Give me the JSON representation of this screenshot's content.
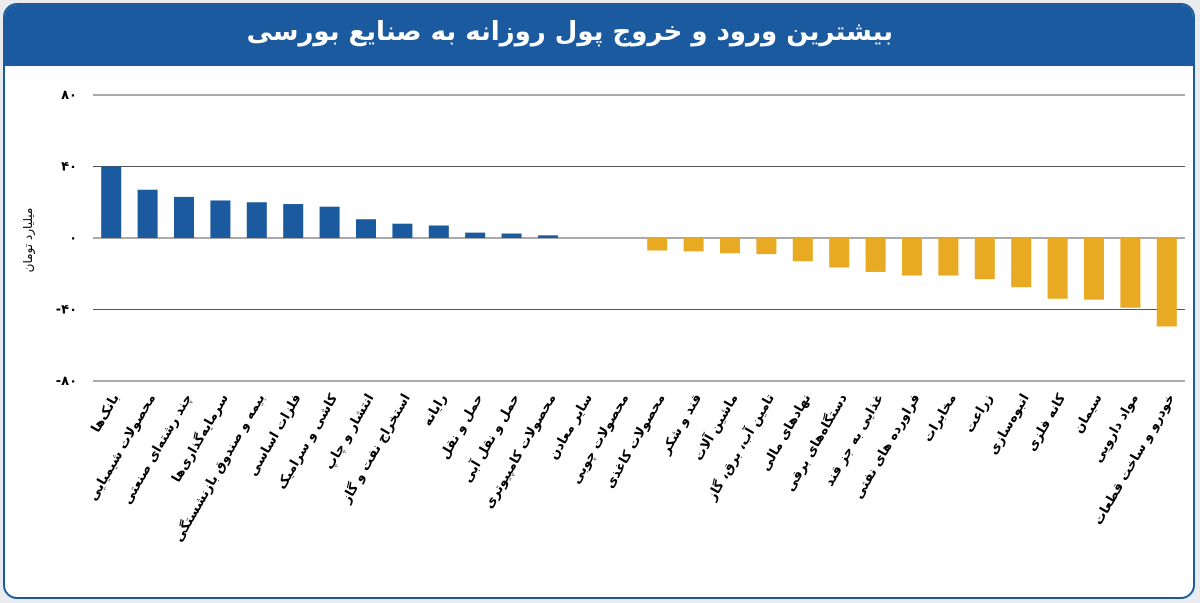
{
  "header": {
    "title": "بیشترین ورود و خروج پول روزانه به صنایع بورسی"
  },
  "colors": {
    "header_bg": "#1c5aa0",
    "positive_bar": "#1c5aa0",
    "negative_bar": "#e8a923"
  },
  "chart_data": {
    "type": "bar",
    "title": "بیشترین ورود و خروج پول روزانه به صنایع بورسی",
    "ylabel": "میلیارد تومان",
    "xlabel": "",
    "ylim": [
      -80,
      80
    ],
    "yticks": [
      80,
      40,
      0,
      -40,
      -80
    ],
    "ytick_labels": [
      "۸۰",
      "۴۰",
      "۰",
      "-۴۰",
      "-۸۰"
    ],
    "grid": "horizontal",
    "categories": [
      "بانک‌ها",
      "محصولات شیمیایی",
      "چند رشته‌ای صنعتی",
      "سرمایه‌گذاری‌ها",
      "بیمه و صندوق بازنشستگی",
      "فلزات اساسی",
      "کاشی و سرامیک",
      "انتشار و چاپ",
      "استخراج نفت و گاز",
      "رایانه",
      "حمل و نقل",
      "حمل و نقل آبی",
      "محصولات کامپیوتری",
      "سایر معادن",
      "محصولات چوبی",
      "محصولات کاغذی",
      "قند و شکر",
      "ماشین آلات",
      "تامین آب، برق، گاز",
      "نهادهای مالی",
      "دستگاه‌های برقی",
      "غذایی به جز قند",
      "فراورده های نفتی",
      "مخابرات",
      "زراعت",
      "انبوه‌سازی",
      "کانه فلزی",
      "سیمان",
      "مواد دارویی",
      "خودرو و ساخت قطعات"
    ],
    "values": [
      40,
      27,
      23,
      21,
      20,
      19,
      17.5,
      10.5,
      8,
      7,
      3,
      2.5,
      1.5,
      0,
      0,
      -7,
      -7.5,
      -8.5,
      -9,
      -13,
      -16.5,
      -19,
      -21,
      -21,
      -23,
      -27.5,
      -34,
      -34.5,
      -39,
      -49.5
    ]
  }
}
